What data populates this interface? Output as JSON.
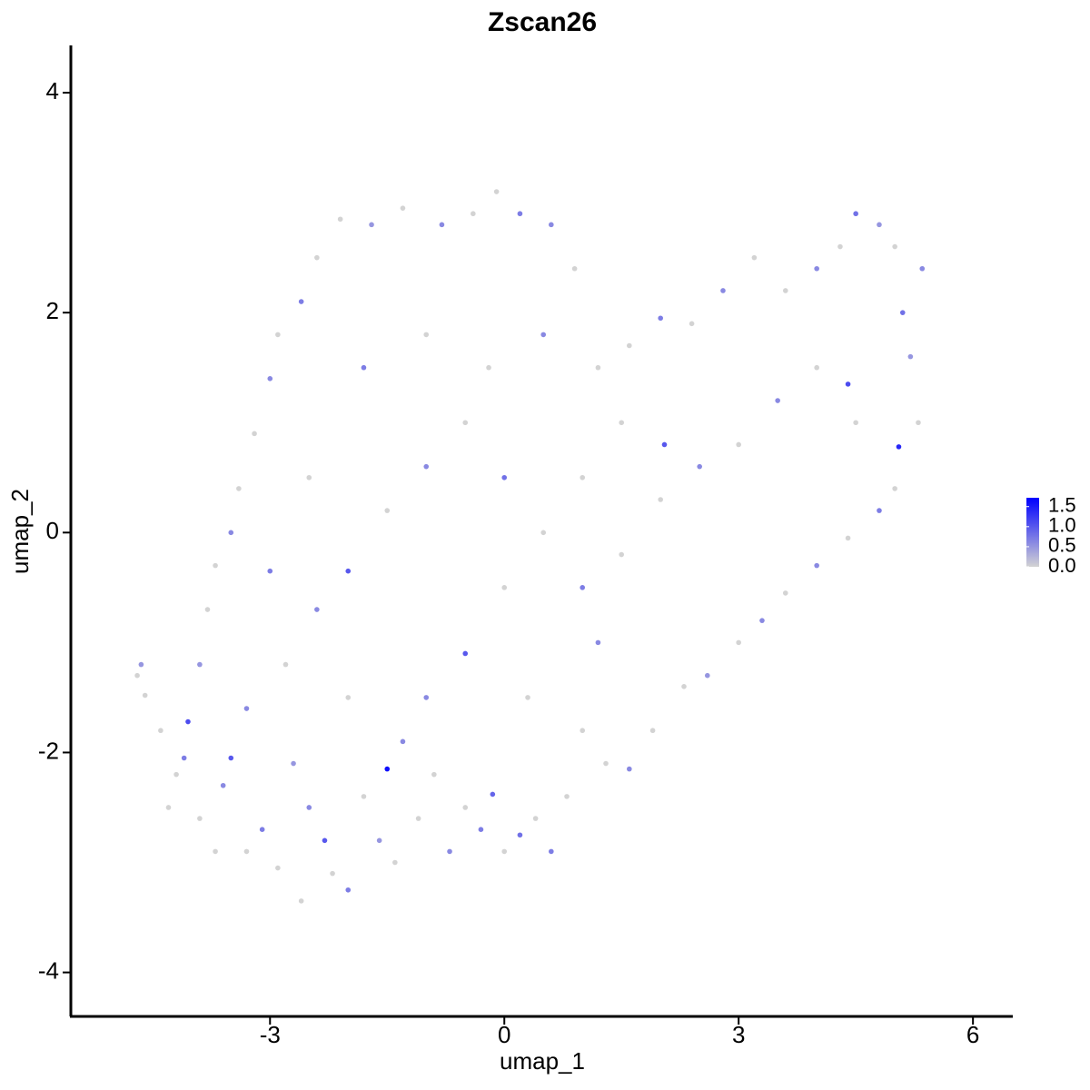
{
  "chart_data": {
    "type": "scatter",
    "title": "Zscan26",
    "x_label": "umap_1",
    "y_label": "umap_2",
    "xlim": [
      -5.55,
      6.51
    ],
    "ylim": [
      -4.4,
      4.43
    ],
    "xticks": [
      -3,
      0,
      3,
      6
    ],
    "yticks": [
      -4,
      -2,
      0,
      2,
      4
    ],
    "colorbar_lim": [
      0,
      1.72
    ],
    "colorbar_ticks": [
      {
        "value": 0,
        "label": "0.0"
      },
      0.5,
      {
        "value": 1,
        "label": "1.0"
      },
      1.5
    ],
    "colors": [
      "#d3d3d3",
      "#0000ff"
    ],
    "x": [
      -4.7,
      -4.65,
      -4.6,
      -4.4,
      -4.05,
      -4.1,
      -4.2,
      -3.9,
      -3.7,
      -3.6,
      -3.5,
      -3.3,
      -3.1,
      -2.9,
      -2.7,
      -2.6,
      -2.5,
      -2.3,
      -2.2,
      -2.0,
      -1.8,
      -1.6,
      -1.5,
      -1.4,
      -1.3,
      -1.1,
      -0.9,
      -0.7,
      -0.5,
      -0.3,
      -0.15,
      0,
      0.2,
      0.4,
      0.6,
      0.8,
      1.0,
      1.3,
      1.6,
      1.9,
      2.3,
      2.6,
      3.0,
      3.3,
      3.6,
      4.0,
      4.4,
      4.8,
      5.0,
      5.05,
      5.3,
      5.2,
      5.1,
      5.35,
      5.0,
      4.8,
      4.5,
      4.3,
      4.0,
      3.6,
      3.2,
      2.8,
      2.4,
      2.05,
      2.0,
      1.6,
      1.2,
      0.9,
      0.6,
      0.2,
      -0.1,
      -0.4,
      -0.8,
      -1.3,
      -1.7,
      -2.1,
      -2.4,
      -2.6,
      -2.9,
      -3.0,
      -3.2,
      -3.4,
      -3.5,
      -3.7,
      -3.8,
      -3.9,
      -3.0,
      -2.4,
      -2.0,
      -1.5,
      -1.0,
      -0.5,
      0,
      0.5,
      1.0,
      1.5,
      2.0,
      2.5,
      3.0,
      3.5,
      4.0,
      4.5,
      4.4,
      -0.5,
      0,
      -1.0,
      -2.0,
      -2.5,
      -1.8,
      -1.0,
      -0.2,
      0.5,
      1.0,
      1.5,
      -3.3,
      -2.8,
      0.3,
      1.2,
      -4.3
    ],
    "y": [
      -1.3,
      -1.2,
      -1.48,
      -1.8,
      -1.72,
      -2.05,
      -2.2,
      -2.6,
      -2.9,
      -2.3,
      -2.05,
      -2.9,
      -2.7,
      -3.05,
      -2.1,
      -3.35,
      -2.5,
      -2.8,
      -3.1,
      -3.25,
      -2.4,
      -2.8,
      -2.15,
      -3.0,
      -1.9,
      -2.6,
      -2.2,
      -2.9,
      -2.5,
      -2.7,
      -2.38,
      -2.9,
      -2.75,
      -2.6,
      -2.9,
      -2.4,
      -1.8,
      -2.1,
      -2.15,
      -1.8,
      -1.4,
      -1.3,
      -1.0,
      -0.8,
      -0.55,
      -0.3,
      -0.05,
      0.2,
      0.4,
      0.78,
      1.0,
      1.6,
      2.0,
      2.4,
      2.6,
      2.8,
      2.9,
      2.6,
      2.4,
      2.2,
      2.5,
      2.2,
      1.9,
      0.8,
      1.95,
      1.7,
      1.5,
      2.4,
      2.8,
      2.9,
      3.1,
      2.9,
      2.8,
      2.95,
      2.8,
      2.85,
      2.5,
      2.1,
      1.8,
      1.4,
      0.9,
      0.4,
      0.0,
      -0.3,
      -0.7,
      -1.2,
      -0.35,
      -0.7,
      -0.35,
      0.2,
      0.6,
      1.0,
      0.5,
      0.0,
      -0.5,
      -0.2,
      0.3,
      0.6,
      0.8,
      1.2,
      1.5,
      1.0,
      1.35,
      -1.1,
      -0.5,
      -1.5,
      -1.5,
      0.5,
      1.5,
      1.8,
      1.5,
      1.8,
      0.5,
      1.0,
      -1.6,
      -1.2,
      -1.5,
      -1.0,
      -2.5
    ],
    "values": [
      0,
      0.5,
      0,
      0,
      1.1,
      0.7,
      0,
      0,
      0,
      0.6,
      1.0,
      0,
      0.7,
      0,
      0.5,
      0,
      0.6,
      1.0,
      0,
      0.7,
      0,
      0.5,
      1.6,
      0,
      0.6,
      0,
      0,
      0.6,
      0,
      0.7,
      0.9,
      0,
      0.8,
      0,
      0.7,
      0,
      0,
      0,
      0.6,
      0,
      0,
      0.5,
      0,
      0.6,
      0,
      0.6,
      0,
      0.7,
      0,
      1.4,
      0,
      0.5,
      0.8,
      0.6,
      0,
      0.5,
      0.8,
      0,
      0.6,
      0,
      0,
      0.6,
      0,
      1.0,
      0.7,
      0,
      0,
      0,
      0.6,
      0.7,
      0,
      0,
      0.6,
      0,
      0.5,
      0,
      0,
      0.7,
      0,
      0.6,
      0,
      0,
      0.6,
      0,
      0,
      0.5,
      0.7,
      0.6,
      1.0,
      0,
      0.6,
      0,
      0.8,
      0,
      0.7,
      0,
      0,
      0.6,
      0,
      0.6,
      0,
      0,
      1.1,
      1.0,
      0,
      0.6,
      0,
      0,
      0.7,
      0,
      0,
      0.6,
      0,
      0,
      0.6,
      0,
      0,
      0.6,
      0
    ]
  }
}
